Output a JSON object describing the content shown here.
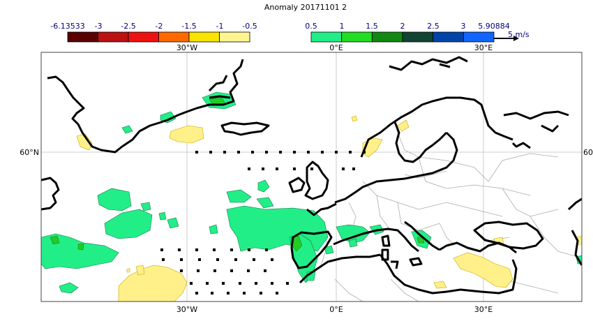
{
  "title": "Anomaly 20171101 2",
  "legend_negative": {
    "labels": [
      "-6.13533",
      "-3",
      "-2.5",
      "-2",
      "-1.5",
      "-1",
      "-0.5"
    ],
    "colors": [
      "#5a0000",
      "#bb1111",
      "#ee1111",
      "#ff6a00",
      "#f7e400",
      "#fff590"
    ]
  },
  "legend_positive": {
    "labels": [
      "0.5",
      "1",
      "1.5",
      "2",
      "2.5",
      "3",
      "5.90884"
    ],
    "colors": [
      "#22ee88",
      "#22dd22",
      "#118811",
      "#114433",
      "#0044aa",
      "#1166ff"
    ]
  },
  "wind_reference": "5 m/s",
  "axes": {
    "top_ticks": [
      "30°W",
      "0°E",
      "30°E"
    ],
    "bottom_ticks": [
      "30°W",
      "0°E",
      "30°E"
    ],
    "left_ticks": [
      "60°N"
    ],
    "right_ticks": [
      "60"
    ]
  },
  "colors": {
    "positive_anomaly": "#22ee88",
    "positive_anomaly_strong": "#22cc22",
    "negative_anomaly": "#fff08a",
    "coast": "#000000",
    "borders": "#aaaaaa",
    "grid": "#cccccc"
  }
}
